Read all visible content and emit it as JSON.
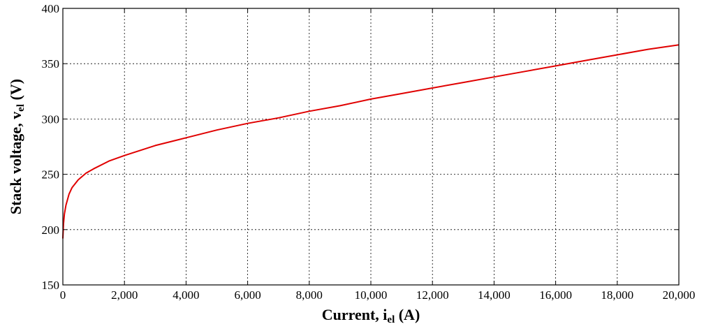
{
  "chart_data": {
    "type": "line",
    "title": "",
    "xlabel": {
      "main": "Current, i",
      "sub": "el",
      "tail": " (A)"
    },
    "ylabel": {
      "main": "Stack voltage, v",
      "sub": "el",
      "tail": " (V)"
    },
    "xlim": [
      0,
      20000
    ],
    "ylim": [
      150,
      400
    ],
    "grid": true,
    "x_ticks": [
      0,
      2000,
      4000,
      6000,
      8000,
      10000,
      12000,
      14000,
      16000,
      18000,
      20000
    ],
    "x_tick_labels": [
      "0",
      "2,000",
      "4,000",
      "6,000",
      "8,000",
      "10,000",
      "12,000",
      "14,000",
      "16,000",
      "18,000",
      "20,000"
    ],
    "y_ticks": [
      150,
      200,
      250,
      300,
      350,
      400
    ],
    "y_tick_labels": [
      "150",
      "200",
      "250",
      "300",
      "350",
      "400"
    ],
    "series": [
      {
        "color": "#e00000",
        "x": [
          0,
          20,
          50,
          100,
          200,
          300,
          500,
          750,
          1000,
          1500,
          2000,
          3000,
          4000,
          5000,
          6000,
          7000,
          8000,
          9000,
          10000,
          11000,
          12000,
          13000,
          14000,
          15000,
          16000,
          17000,
          18000,
          19000,
          20000
        ],
        "y": [
          192,
          205,
          214,
          222,
          232,
          238,
          245,
          251,
          255,
          262,
          267,
          276,
          283,
          290,
          296,
          301,
          307,
          312,
          318,
          323,
          328,
          333,
          338,
          343,
          348,
          353,
          358,
          363,
          367
        ]
      }
    ]
  }
}
